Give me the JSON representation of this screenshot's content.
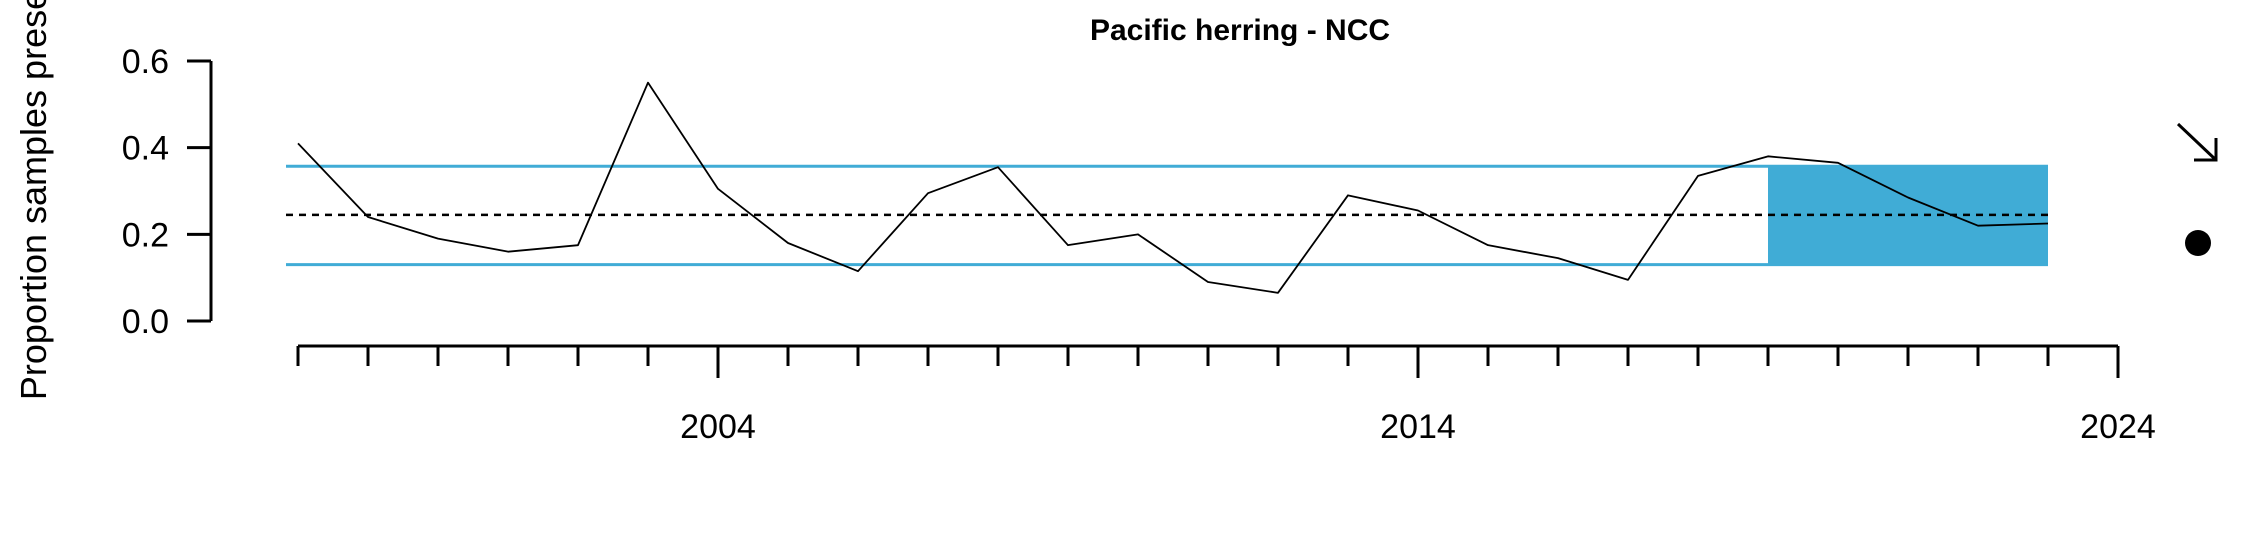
{
  "chart_data": {
    "type": "line",
    "title": "Pacific herring - NCC",
    "ylabel": "Proportion samples prese",
    "xlabel": "",
    "x": [
      1998,
      1999,
      2000,
      2001,
      2002,
      2003,
      2004,
      2005,
      2006,
      2007,
      2008,
      2009,
      2010,
      2011,
      2012,
      2013,
      2014,
      2015,
      2016,
      2017,
      2018,
      2019,
      2020,
      2021,
      2022,
      2023
    ],
    "series": [
      {
        "values": [
          0.41,
          0.24,
          0.19,
          0.16,
          0.175,
          0.55,
          0.305,
          0.18,
          0.115,
          0.295,
          0.355,
          0.175,
          0.2,
          0.09,
          0.065,
          0.29,
          0.255,
          0.175,
          0.145,
          0.095,
          0.335,
          0.38,
          0.365,
          0.285,
          0.22,
          0.225
        ],
        "color": "#000000"
      }
    ],
    "mean_line": 0.245,
    "upper_band": 0.357,
    "lower_band": 0.13,
    "shade_x_range": [
      2019,
      2023
    ],
    "xlim": [
      1998,
      2024
    ],
    "ylim": [
      0.0,
      0.6
    ],
    "y_ticks": [
      "0.0",
      "0.2",
      "0.4",
      "0.6"
    ],
    "x_major_ticks": [
      2004,
      2014,
      2024
    ],
    "x_tick_labels": [
      "2004",
      "2014",
      "2024"
    ],
    "grid": false,
    "band_color": "#40acd6",
    "line_color": "#000000",
    "trend_indicator": "arrow-down-right",
    "status_indicator": "filled-circle"
  }
}
